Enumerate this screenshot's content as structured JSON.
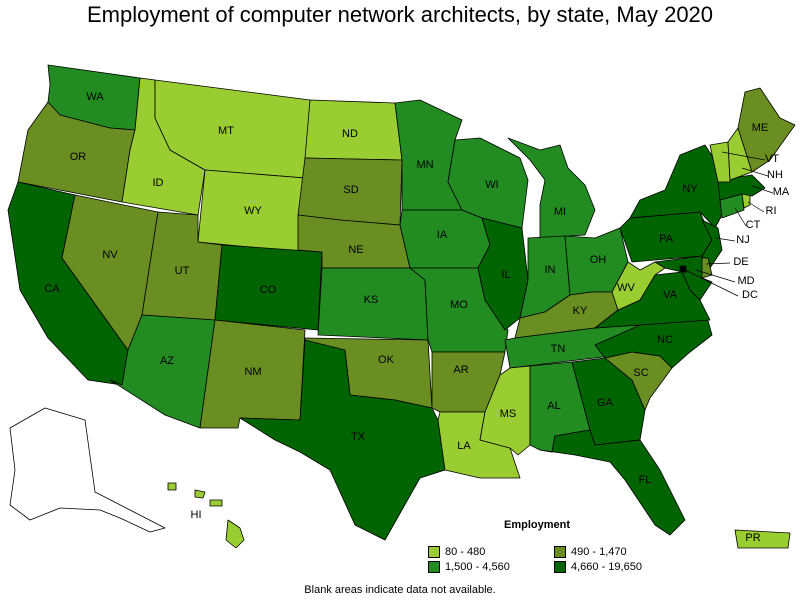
{
  "title": "Employment of computer network architects, by state, May 2020",
  "legend": {
    "title": "Employment",
    "items": [
      {
        "key": "c1",
        "label": "80 - 480",
        "color": "#9ACD32"
      },
      {
        "key": "c2",
        "label": "490 - 1,470",
        "color": "#6B8E23"
      },
      {
        "key": "c3",
        "label": "1,500 - 4,560",
        "color": "#228B22"
      },
      {
        "key": "c4",
        "label": "4,660 - 19,650",
        "color": "#006400"
      }
    ]
  },
  "colors": {
    "c1": "#9ACD32",
    "c2": "#6B8E23",
    "c3": "#228B22",
    "c4": "#006400",
    "na": "#FFFFFF"
  },
  "footnote": "Blank areas indicate data not available.",
  "states": {
    "WA": "c3",
    "OR": "c2",
    "CA": "c4",
    "NV": "c2",
    "ID": "c1",
    "MT": "c1",
    "WY": "c1",
    "UT": "c2",
    "AZ": "c3",
    "CO": "c4",
    "NM": "c2",
    "ND": "c1",
    "SD": "c2",
    "NE": "c2",
    "KS": "c3",
    "OK": "c2",
    "TX": "c4",
    "MN": "c3",
    "IA": "c3",
    "MO": "c3",
    "AR": "c2",
    "LA": "c1",
    "WI": "c3",
    "IL": "c4",
    "MI": "c3",
    "IN": "c3",
    "OH": "c3",
    "KY": "c2",
    "TN": "c3",
    "MS": "c1",
    "AL": "c3",
    "GA": "c4",
    "FL": "c4",
    "SC": "c2",
    "NC": "c4",
    "VA": "c4",
    "WV": "c1",
    "PA": "c4",
    "NY": "c4",
    "ME": "c2",
    "VT": "c1",
    "NH": "c1",
    "MA": "c4",
    "RI": "c1",
    "CT": "c3",
    "NJ": "c4",
    "DE": "c2",
    "MD": "c4",
    "DC": "c4",
    "HI": "c1",
    "AK": "na",
    "PR": "c1"
  }
}
